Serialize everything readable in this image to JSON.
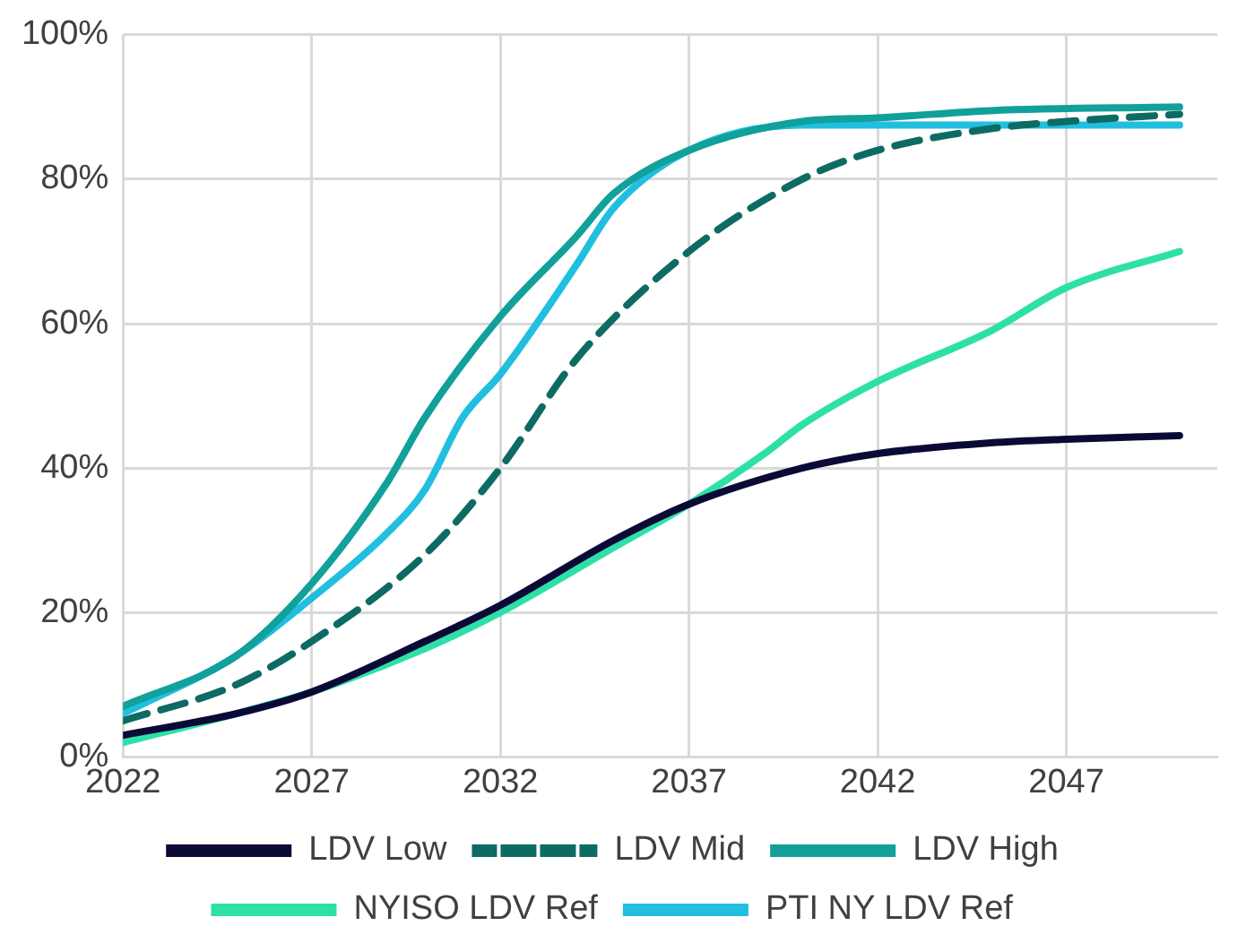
{
  "chart_data": {
    "type": "line",
    "xlim": [
      2022,
      2051
    ],
    "xticks": [
      2022,
      2027,
      2032,
      2037,
      2042,
      2047
    ],
    "ylim": [
      0,
      100
    ],
    "yticks": [
      {
        "value": 0,
        "label": "0%"
      },
      {
        "value": 20,
        "label": "20%"
      },
      {
        "value": 40,
        "label": "40%"
      },
      {
        "value": 60,
        "label": "60%"
      },
      {
        "value": 80,
        "label": "80%"
      },
      {
        "value": 100,
        "label": "100%"
      }
    ],
    "grid": true,
    "legend": "bottom",
    "marker": "none",
    "series": [
      {
        "name": "LDV Low",
        "color": "#0b0a36",
        "line_style": "solid",
        "x": [
          2022,
          2025,
          2027,
          2030,
          2032,
          2035,
          2037,
          2040,
          2042,
          2045,
          2047,
          2050
        ],
        "values": [
          3,
          6,
          9,
          16,
          21,
          30,
          35,
          40,
          42,
          43.5,
          44,
          44.5
        ]
      },
      {
        "name": "LDV Mid",
        "color": "#0e6b64",
        "line_style": "dashed",
        "x": [
          2022,
          2025,
          2027,
          2030,
          2032,
          2034,
          2037,
          2040,
          2042,
          2045,
          2047,
          2050
        ],
        "values": [
          5,
          10,
          16,
          28,
          40,
          55,
          70,
          80,
          84,
          87,
          88,
          89
        ]
      },
      {
        "name": "LDV High",
        "color": "#11a09a",
        "line_style": "solid",
        "x": [
          2022,
          2025,
          2027,
          2029,
          2030,
          2032,
          2034,
          2035,
          2037,
          2040,
          2042,
          2045,
          2050
        ],
        "values": [
          7,
          14,
          24,
          38,
          47,
          61,
          72,
          78,
          84,
          88,
          88.5,
          89.5,
          90
        ]
      },
      {
        "name": "NYISO LDV Ref",
        "color": "#2ee0a8",
        "line_style": "solid",
        "x": [
          2022,
          2025,
          2027,
          2030,
          2032,
          2035,
          2037,
          2039,
          2040,
          2042,
          2045,
          2047,
          2050
        ],
        "values": [
          2,
          6,
          9,
          15,
          20,
          29,
          35,
          42,
          46,
          52,
          59,
          65,
          70
        ]
      },
      {
        "name": "PTI NY LDV Ref",
        "color": "#20bfe0",
        "line_style": "solid",
        "x": [
          2022,
          2025,
          2027,
          2029,
          2030,
          2031,
          2032,
          2034,
          2035,
          2037,
          2040,
          2045,
          2050
        ],
        "values": [
          6,
          14,
          22,
          31,
          37,
          47,
          53,
          68,
          76,
          84,
          87.5,
          87.5,
          87.5
        ]
      }
    ]
  }
}
